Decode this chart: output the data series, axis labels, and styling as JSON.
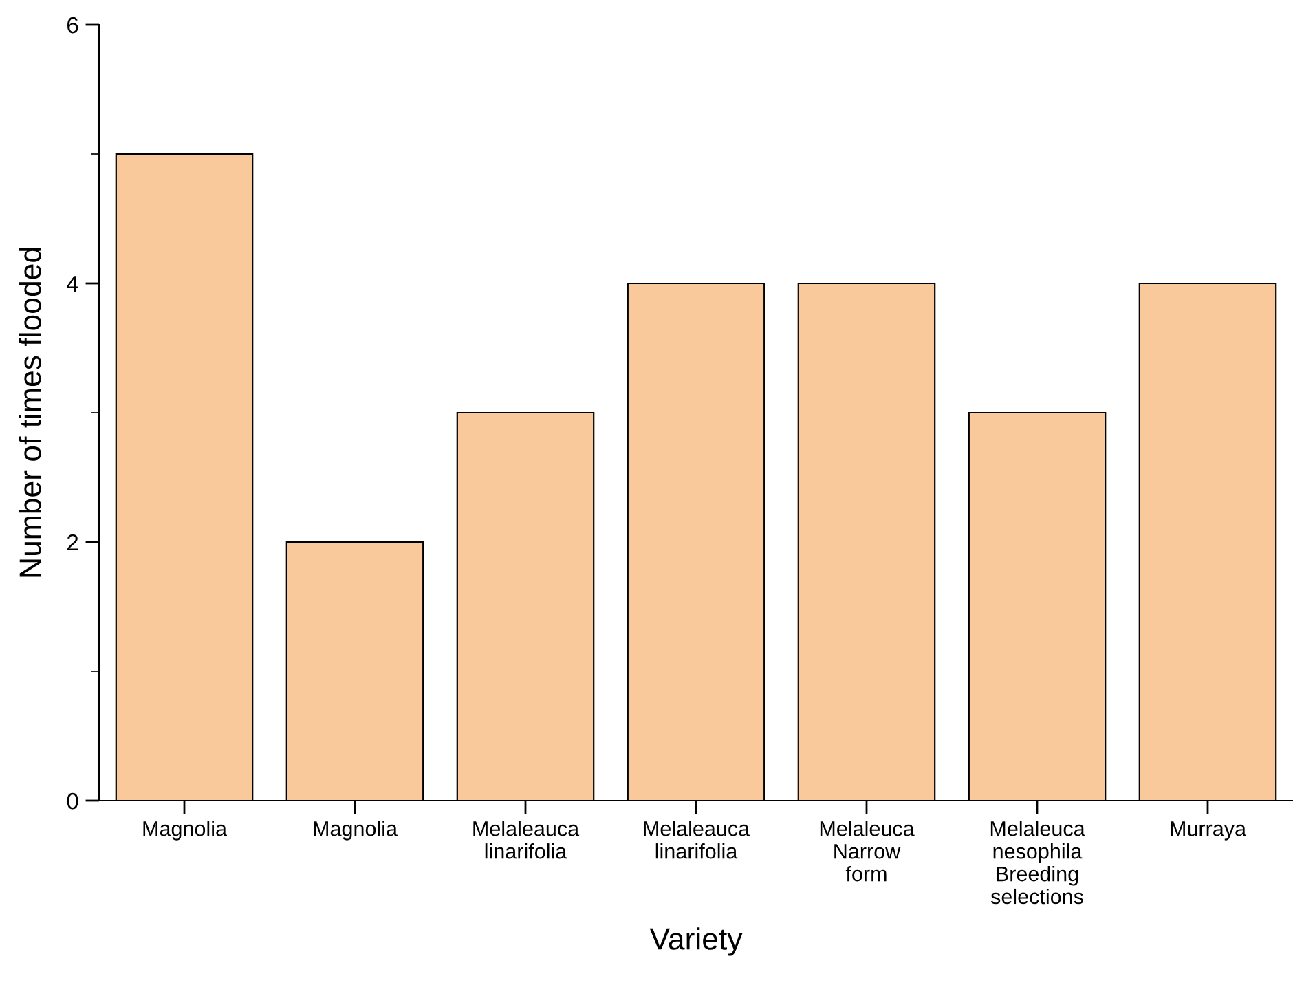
{
  "chart_data": {
    "type": "bar",
    "xlabel": "Variety",
    "ylabel": "Number of times flooded",
    "categories": [
      "Magnolia",
      "Magnolia",
      "Melaleauca\nlinarifolia",
      "Melaleauca\nlinarifolia",
      "Melaleuca\nNarrow\nform",
      "Melaleuca\nnesophila\nBreeding\nselections",
      "Murraya"
    ],
    "values": [
      5,
      2,
      3,
      4,
      4,
      3,
      4
    ],
    "color": "#f9c89b",
    "ylim": [
      0,
      6
    ],
    "yticks": [
      0,
      2,
      4,
      6
    ],
    "grid": false,
    "legend": false
  }
}
